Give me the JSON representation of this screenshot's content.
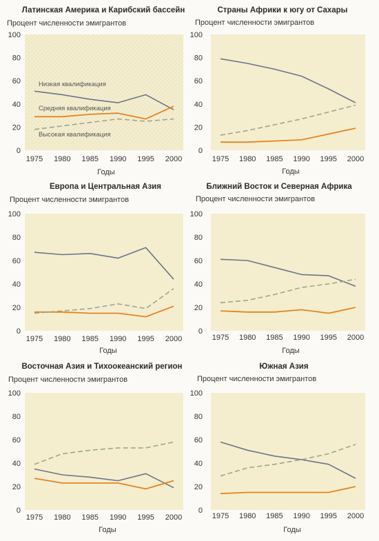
{
  "chart_data": [
    {
      "type": "line",
      "title": "Латинская Америка и Карибский бассейн",
      "ylabel": "Процент численности эмигрантов",
      "xlabel": "Годы",
      "x": [
        1975,
        1980,
        1985,
        1990,
        1995,
        2000
      ],
      "ylim": [
        0,
        100
      ],
      "yticks": [
        0,
        20,
        40,
        60,
        80,
        100
      ],
      "series": [
        {
          "key": "low",
          "name": "Низкая квалификация",
          "values": [
            51,
            48,
            44,
            41,
            48,
            35
          ]
        },
        {
          "key": "mid",
          "name": "Средняя квалификация",
          "values": [
            29,
            29,
            31,
            32,
            27,
            38
          ]
        },
        {
          "key": "high",
          "name": "Высокая квалификация",
          "values": [
            18,
            21,
            24,
            27,
            25,
            27
          ]
        }
      ]
    },
    {
      "type": "line",
      "title": "Страны Африки к югу от Сахары",
      "ylabel": "Процент численности эмигрантов",
      "xlabel": "Годы",
      "x": [
        1975,
        1980,
        1985,
        1990,
        1995,
        2000
      ],
      "ylim": [
        0,
        100
      ],
      "yticks": [
        0,
        20,
        40,
        60,
        80,
        100
      ],
      "series": [
        {
          "key": "low",
          "values": [
            79,
            75,
            70,
            64,
            53,
            41
          ]
        },
        {
          "key": "mid",
          "values": [
            7,
            7,
            8,
            9,
            14,
            19
          ]
        },
        {
          "key": "high",
          "values": [
            13,
            17,
            22,
            27,
            33,
            39
          ]
        }
      ]
    },
    {
      "type": "line",
      "title": "Европа и Центральная Азия",
      "ylabel": "Процент численности эмигрантов",
      "xlabel": "Годы",
      "x": [
        1975,
        1980,
        1985,
        1990,
        1995,
        2000
      ],
      "ylim": [
        0,
        100
      ],
      "yticks": [
        0,
        20,
        40,
        60,
        80,
        100
      ],
      "series": [
        {
          "key": "low",
          "values": [
            67,
            65,
            66,
            62,
            71,
            44
          ]
        },
        {
          "key": "mid",
          "values": [
            16,
            16,
            15,
            15,
            12,
            21
          ]
        },
        {
          "key": "high",
          "values": [
            15,
            17,
            19,
            23,
            19,
            36
          ]
        }
      ]
    },
    {
      "type": "line",
      "title": "Ближний Восток и Северная Африка",
      "ylabel": "Процент численности эмигрантов",
      "xlabel": "Годы",
      "x": [
        1975,
        1980,
        1985,
        1990,
        1995,
        2000
      ],
      "ylim": [
        0,
        100
      ],
      "yticks": [
        0,
        20,
        40,
        60,
        80,
        100
      ],
      "series": [
        {
          "key": "low",
          "values": [
            61,
            60,
            54,
            48,
            47,
            38
          ]
        },
        {
          "key": "mid",
          "values": [
            17,
            16,
            16,
            18,
            15,
            20
          ]
        },
        {
          "key": "high",
          "values": [
            24,
            26,
            31,
            37,
            40,
            44
          ]
        }
      ]
    },
    {
      "type": "line",
      "title": "Восточная Азия и Тихоокеанский регион",
      "ylabel": "Процент численности эмигрантов",
      "xlabel": "Годы",
      "x": [
        1975,
        1980,
        1985,
        1990,
        1995,
        2000
      ],
      "ylim": [
        0,
        100
      ],
      "yticks": [
        0,
        20,
        40,
        60,
        80,
        100
      ],
      "series": [
        {
          "key": "low",
          "values": [
            35,
            30,
            28,
            25,
            31,
            19
          ]
        },
        {
          "key": "mid",
          "values": [
            27,
            23,
            23,
            23,
            18,
            25
          ]
        },
        {
          "key": "high",
          "values": [
            39,
            48,
            51,
            53,
            53,
            58
          ]
        }
      ]
    },
    {
      "type": "line",
      "title": "Южная Азия",
      "ylabel": "Процент численности эмигрантов",
      "xlabel": "Годы",
      "x": [
        1975,
        1980,
        1985,
        1990,
        1995,
        2000
      ],
      "ylim": [
        0,
        100
      ],
      "yticks": [
        0,
        20,
        40,
        60,
        80,
        100
      ],
      "series": [
        {
          "key": "low",
          "values": [
            58,
            51,
            46,
            43,
            39,
            27
          ]
        },
        {
          "key": "mid",
          "values": [
            14,
            15,
            15,
            15,
            15,
            20
          ]
        },
        {
          "key": "high",
          "values": [
            29,
            36,
            39,
            43,
            48,
            56
          ]
        }
      ]
    }
  ],
  "colors": {
    "low": "#6b7487",
    "mid": "#e8821e",
    "high": "#9ca58c",
    "plot_bg": "#f4eecf",
    "plot_bg_hatch": "#e9e3c3",
    "text": "#333333"
  }
}
